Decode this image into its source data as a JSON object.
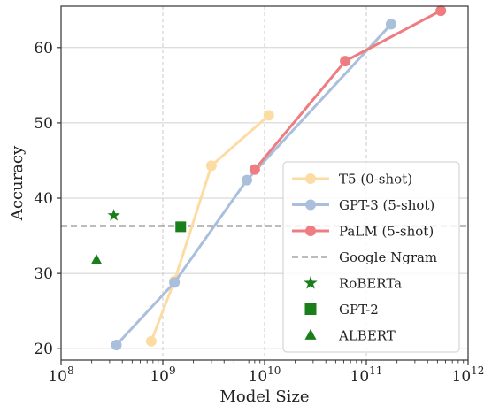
{
  "chart_data": {
    "type": "line",
    "xlabel": "Model Size",
    "ylabel": "Accuracy",
    "xscale": "log",
    "xlim": [
      100000000,
      1000000000000
    ],
    "ylim": [
      18.5,
      65.5
    ],
    "grid": true,
    "legend_position": "lower-right",
    "x_ticks": [
      {
        "value": 100000000,
        "base": "10",
        "exp": "8"
      },
      {
        "value": 1000000000,
        "base": "10",
        "exp": "9"
      },
      {
        "value": 10000000000,
        "base": "10",
        "exp": "10"
      },
      {
        "value": 100000000000,
        "base": "10",
        "exp": "11"
      },
      {
        "value": 1000000000000,
        "base": "10",
        "exp": "12"
      }
    ],
    "y_ticks": [
      {
        "value": 20,
        "label": "20"
      },
      {
        "value": 30,
        "label": "30"
      },
      {
        "value": 40,
        "label": "40"
      },
      {
        "value": 50,
        "label": "50"
      },
      {
        "value": 60,
        "label": "60"
      }
    ],
    "series": [
      {
        "name": "T5 (0-shot)",
        "kind": "line",
        "color": "#fddca3",
        "x": [
          770000000,
          1300000000,
          3000000000,
          11000000000
        ],
        "y": [
          21.0,
          29.0,
          44.3,
          51.0
        ]
      },
      {
        "name": "GPT-3 (5-shot)",
        "kind": "line",
        "color": "#a9bfdc",
        "x": [
          350000000,
          1300000000,
          6700000000,
          175000000000
        ],
        "y": [
          20.5,
          28.8,
          42.4,
          63.1
        ]
      },
      {
        "name": "PaLM (5-shot)",
        "kind": "line",
        "color": "#ee7c80",
        "x": [
          8000000000,
          62000000000,
          540000000000
        ],
        "y": [
          43.8,
          58.2,
          64.9
        ]
      },
      {
        "name": "Google Ngram",
        "kind": "hline",
        "color": "#7a7a7a",
        "y": 36.3
      },
      {
        "name": "RoBERTa",
        "kind": "marker",
        "marker": "star",
        "color": "#1a7f1a",
        "x": [
          330000000
        ],
        "y": [
          37.7
        ]
      },
      {
        "name": "GPT-2",
        "kind": "marker",
        "marker": "square",
        "color": "#1a7f1a",
        "x": [
          1500000000
        ],
        "y": [
          36.2
        ]
      },
      {
        "name": "ALBERT",
        "kind": "marker",
        "marker": "triangle",
        "color": "#1a7f1a",
        "x": [
          223000000
        ],
        "y": [
          31.8
        ]
      }
    ]
  }
}
